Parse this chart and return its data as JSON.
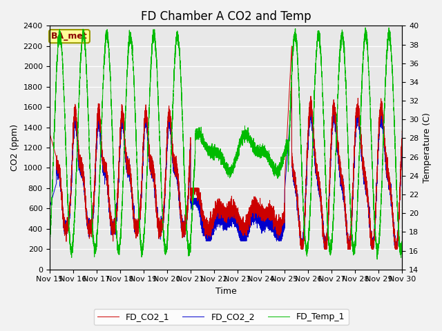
{
  "title": "FD Chamber A CO2 and Temp",
  "xlabel": "Time",
  "ylabel_left": "CO2 (ppm)",
  "ylabel_right": "Temperature (C)",
  "ylim_left": [
    0,
    2400
  ],
  "ylim_right": [
    14,
    40
  ],
  "yticks_left": [
    0,
    200,
    400,
    600,
    800,
    1000,
    1200,
    1400,
    1600,
    1800,
    2000,
    2200,
    2400
  ],
  "yticks_right": [
    14,
    16,
    18,
    20,
    22,
    24,
    26,
    28,
    30,
    32,
    34,
    36,
    38,
    40
  ],
  "xtick_labels": [
    "Nov 15",
    "Nov 16",
    "Nov 17",
    "Nov 18",
    "Nov 19",
    "Nov 20",
    "Nov 21",
    "Nov 22",
    "Nov 23",
    "Nov 24",
    "Nov 25",
    "Nov 26",
    "Nov 27",
    "Nov 28",
    "Nov 29",
    "Nov 30"
  ],
  "legend_labels": [
    "FD_CO2_1",
    "FD_CO2_2",
    "FD_Temp_1"
  ],
  "line_colors": [
    "#cc0000",
    "#0000cc",
    "#00bb00"
  ],
  "annotation_text": "BA_met",
  "annot_facecolor": "#ffff99",
  "annot_edgecolor": "#999900",
  "bg_color": "#e8e8e8",
  "grid_color": "#ffffff",
  "title_fontsize": 12,
  "label_fontsize": 9,
  "tick_fontsize": 8,
  "legend_fontsize": 9
}
